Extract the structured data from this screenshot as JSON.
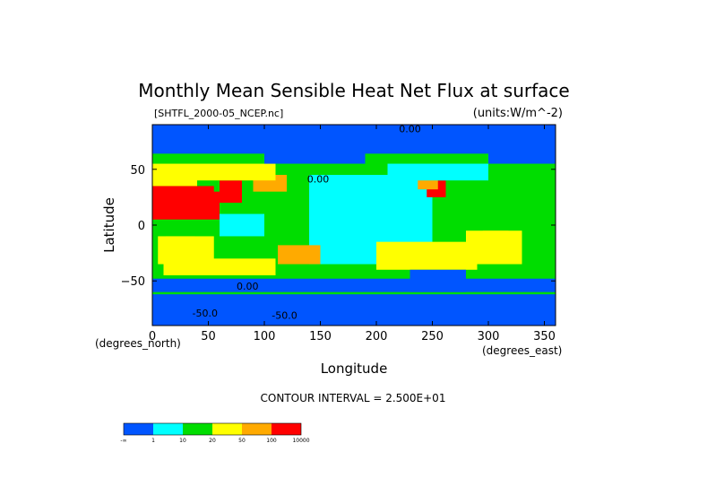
{
  "chart_data": {
    "type": "heatmap",
    "title": "Monthly Mean Sensible Heat Net Flux at surface",
    "subtitle_left": "[SHTFL_2000-05_NCEP.nc]",
    "subtitle_right": "(units:W/m^-2)",
    "xlabel": "Longitude",
    "ylabel": "Latitude",
    "x_unit_label": "(degrees_east)",
    "y_unit_label": "(degrees_north)",
    "xlim": [
      0,
      360
    ],
    "ylim": [
      -90,
      90
    ],
    "x_ticks": [
      0,
      50,
      100,
      150,
      200,
      250,
      300,
      350
    ],
    "y_ticks": [
      50,
      0,
      -50
    ],
    "contour_interval_text": "CONTOUR INTERVAL = 2.500E+01",
    "colorbar": {
      "colors": [
        "#0055ff",
        "#00ffff",
        "#00dd00",
        "#ffff00",
        "#ffaa00",
        "#ff0000"
      ],
      "labels": [
        "-∞",
        "1",
        "10",
        "20",
        "50",
        "100",
        "10000"
      ]
    },
    "contour_labels": [
      {
        "text": "-50.0",
        "lon": 47,
        "lat": -82
      },
      {
        "text": "-50.0",
        "lon": 118,
        "lat": -84
      },
      {
        "text": "0.00",
        "lon": 230,
        "lat": 83
      },
      {
        "text": "0.00",
        "lon": 148,
        "lat": 38
      },
      {
        "text": "0.00",
        "lon": 85,
        "lat": -58
      }
    ],
    "regions": [
      {
        "lon": [
          0,
          360
        ],
        "lat": [
          -90,
          90
        ],
        "class": 2
      },
      {
        "lon": [
          0,
          360
        ],
        "lat": [
          -90,
          -62
        ],
        "class": 0
      },
      {
        "lon": [
          0,
          360
        ],
        "lat": [
          64,
          90
        ],
        "class": 0
      },
      {
        "lon": [
          140,
          250
        ],
        "lat": [
          -35,
          45
        ],
        "class": 1
      },
      {
        "lon": [
          150,
          230
        ],
        "lat": [
          -10,
          25
        ],
        "class": 1
      },
      {
        "lon": [
          60,
          100
        ],
        "lat": [
          -10,
          10
        ],
        "class": 1
      },
      {
        "lon": [
          0,
          55
        ],
        "lat": [
          10,
          35
        ],
        "class": 5
      },
      {
        "lon": [
          0,
          60
        ],
        "lat": [
          5,
          30
        ],
        "class": 5
      },
      {
        "lon": [
          60,
          80
        ],
        "lat": [
          20,
          40
        ],
        "class": 5
      },
      {
        "lon": [
          90,
          120
        ],
        "lat": [
          30,
          45
        ],
        "class": 4
      },
      {
        "lon": [
          245,
          262
        ],
        "lat": [
          25,
          40
        ],
        "class": 5
      },
      {
        "lon": [
          237,
          255
        ],
        "lat": [
          32,
          50
        ],
        "class": 4
      },
      {
        "lon": [
          0,
          40
        ],
        "lat": [
          35,
          55
        ],
        "class": 3
      },
      {
        "lon": [
          40,
          110
        ],
        "lat": [
          40,
          55
        ],
        "class": 3
      },
      {
        "lon": [
          12,
          38
        ],
        "lat": [
          -28,
          -10
        ],
        "class": 4
      },
      {
        "lon": [
          5,
          55
        ],
        "lat": [
          -35,
          -10
        ],
        "class": 3
      },
      {
        "lon": [
          112,
          150
        ],
        "lat": [
          -35,
          -18
        ],
        "class": 4
      },
      {
        "lon": [
          295,
          318
        ],
        "lat": [
          -20,
          -5
        ],
        "class": 4
      },
      {
        "lon": [
          280,
          330
        ],
        "lat": [
          -35,
          -5
        ],
        "class": 3
      },
      {
        "lon": [
          200,
          290
        ],
        "lat": [
          -40,
          -15
        ],
        "class": 3
      },
      {
        "lon": [
          10,
          110
        ],
        "lat": [
          -45,
          -30
        ],
        "class": 3
      },
      {
        "lon": [
          0,
          360
        ],
        "lat": [
          -60,
          -48
        ],
        "class": 0
      },
      {
        "lon": [
          100,
          190
        ],
        "lat": [
          55,
          70
        ],
        "class": 0
      },
      {
        "lon": [
          210,
          300
        ],
        "lat": [
          40,
          55
        ],
        "class": 1
      },
      {
        "lon": [
          230,
          280
        ],
        "lat": [
          -60,
          -40
        ],
        "class": 0
      },
      {
        "lon": [
          300,
          360
        ],
        "lat": [
          55,
          70
        ],
        "class": 0
      },
      {
        "lon": [
          300,
          350
        ],
        "lat": [
          10,
          40
        ],
        "class": 2
      }
    ]
  }
}
